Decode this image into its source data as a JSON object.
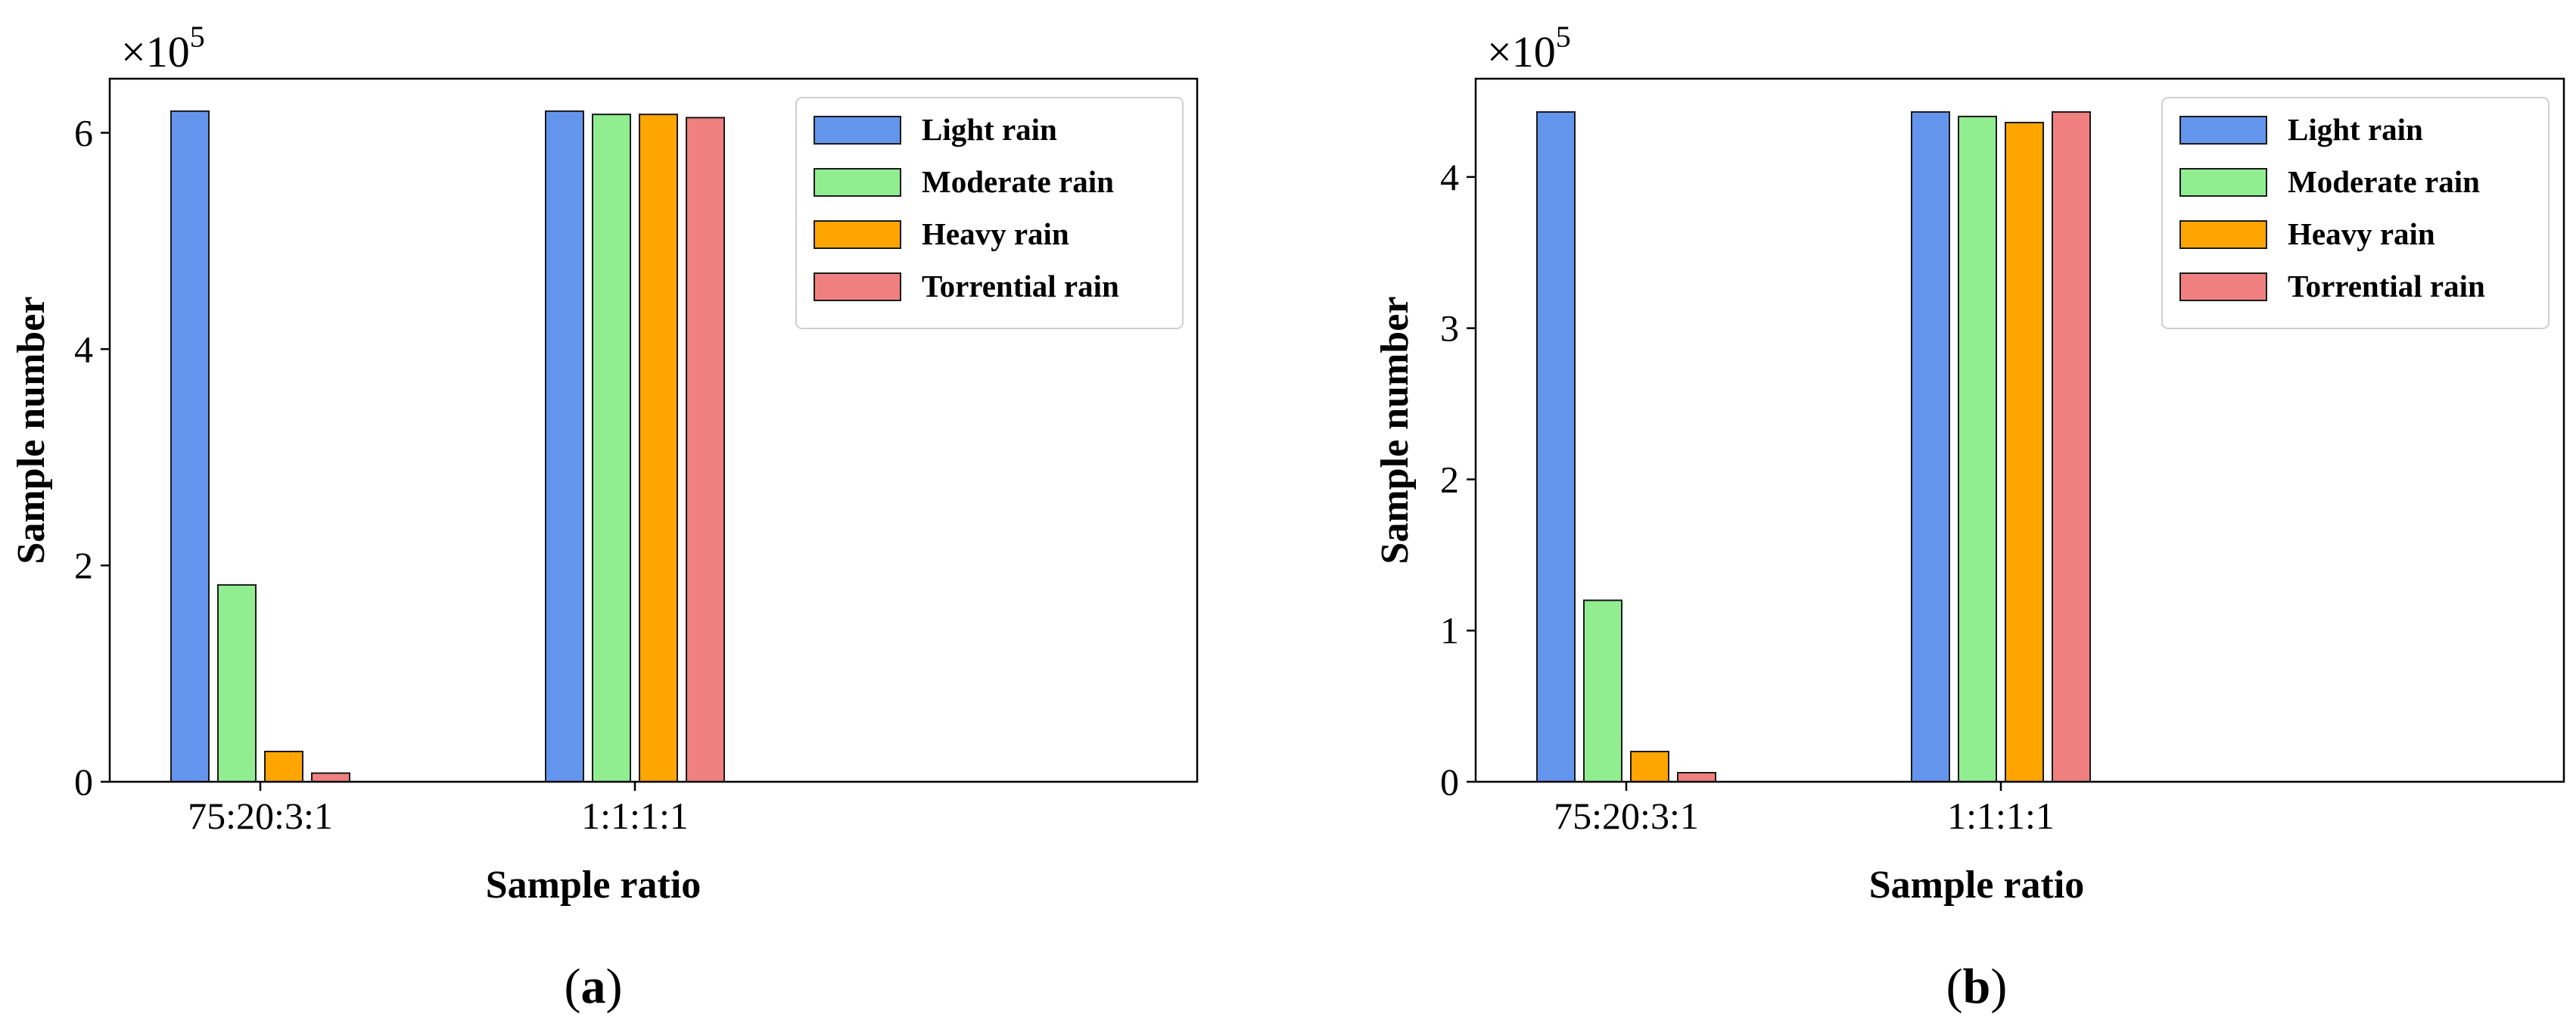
{
  "chart_data": [
    {
      "type": "bar",
      "panel_label": "a",
      "categories": [
        "75:20:3:1",
        "1:1:1:1"
      ],
      "series": [
        {
          "name": "Light rain",
          "values": [
            6.2,
            6.2
          ],
          "color": "#6495ED"
        },
        {
          "name": "Moderate rain",
          "values": [
            1.82,
            6.17
          ],
          "color": "#90EE90"
        },
        {
          "name": "Heavy rain",
          "values": [
            0.28,
            6.17
          ],
          "color": "#FFA500"
        },
        {
          "name": "Torrential rain",
          "values": [
            0.08,
            6.14
          ],
          "color": "#F08080"
        }
      ],
      "xlabel": "Sample ratio",
      "ylabel": "Sample number",
      "y_exponent_base": "×10",
      "y_exponent_power": "5",
      "ylim": [
        0,
        6.5
      ],
      "yticks": [
        0,
        2,
        4,
        6
      ],
      "legend": "top-right",
      "grid": false
    },
    {
      "type": "bar",
      "panel_label": "b",
      "categories": [
        "75:20:3:1",
        "1:1:1:1"
      ],
      "series": [
        {
          "name": "Light rain",
          "values": [
            4.43,
            4.43
          ],
          "color": "#6495ED"
        },
        {
          "name": "Moderate rain",
          "values": [
            1.2,
            4.4
          ],
          "color": "#90EE90"
        },
        {
          "name": "Heavy rain",
          "values": [
            0.2,
            4.36
          ],
          "color": "#FFA500"
        },
        {
          "name": "Torrential rain",
          "values": [
            0.06,
            4.43
          ],
          "color": "#F08080"
        }
      ],
      "xlabel": "Sample ratio",
      "ylabel": "Sample number",
      "y_exponent_base": "×10",
      "y_exponent_power": "5",
      "ylim": [
        0,
        4.65
      ],
      "yticks": [
        0,
        1,
        2,
        3,
        4
      ],
      "legend": "top-right",
      "grid": false
    }
  ]
}
